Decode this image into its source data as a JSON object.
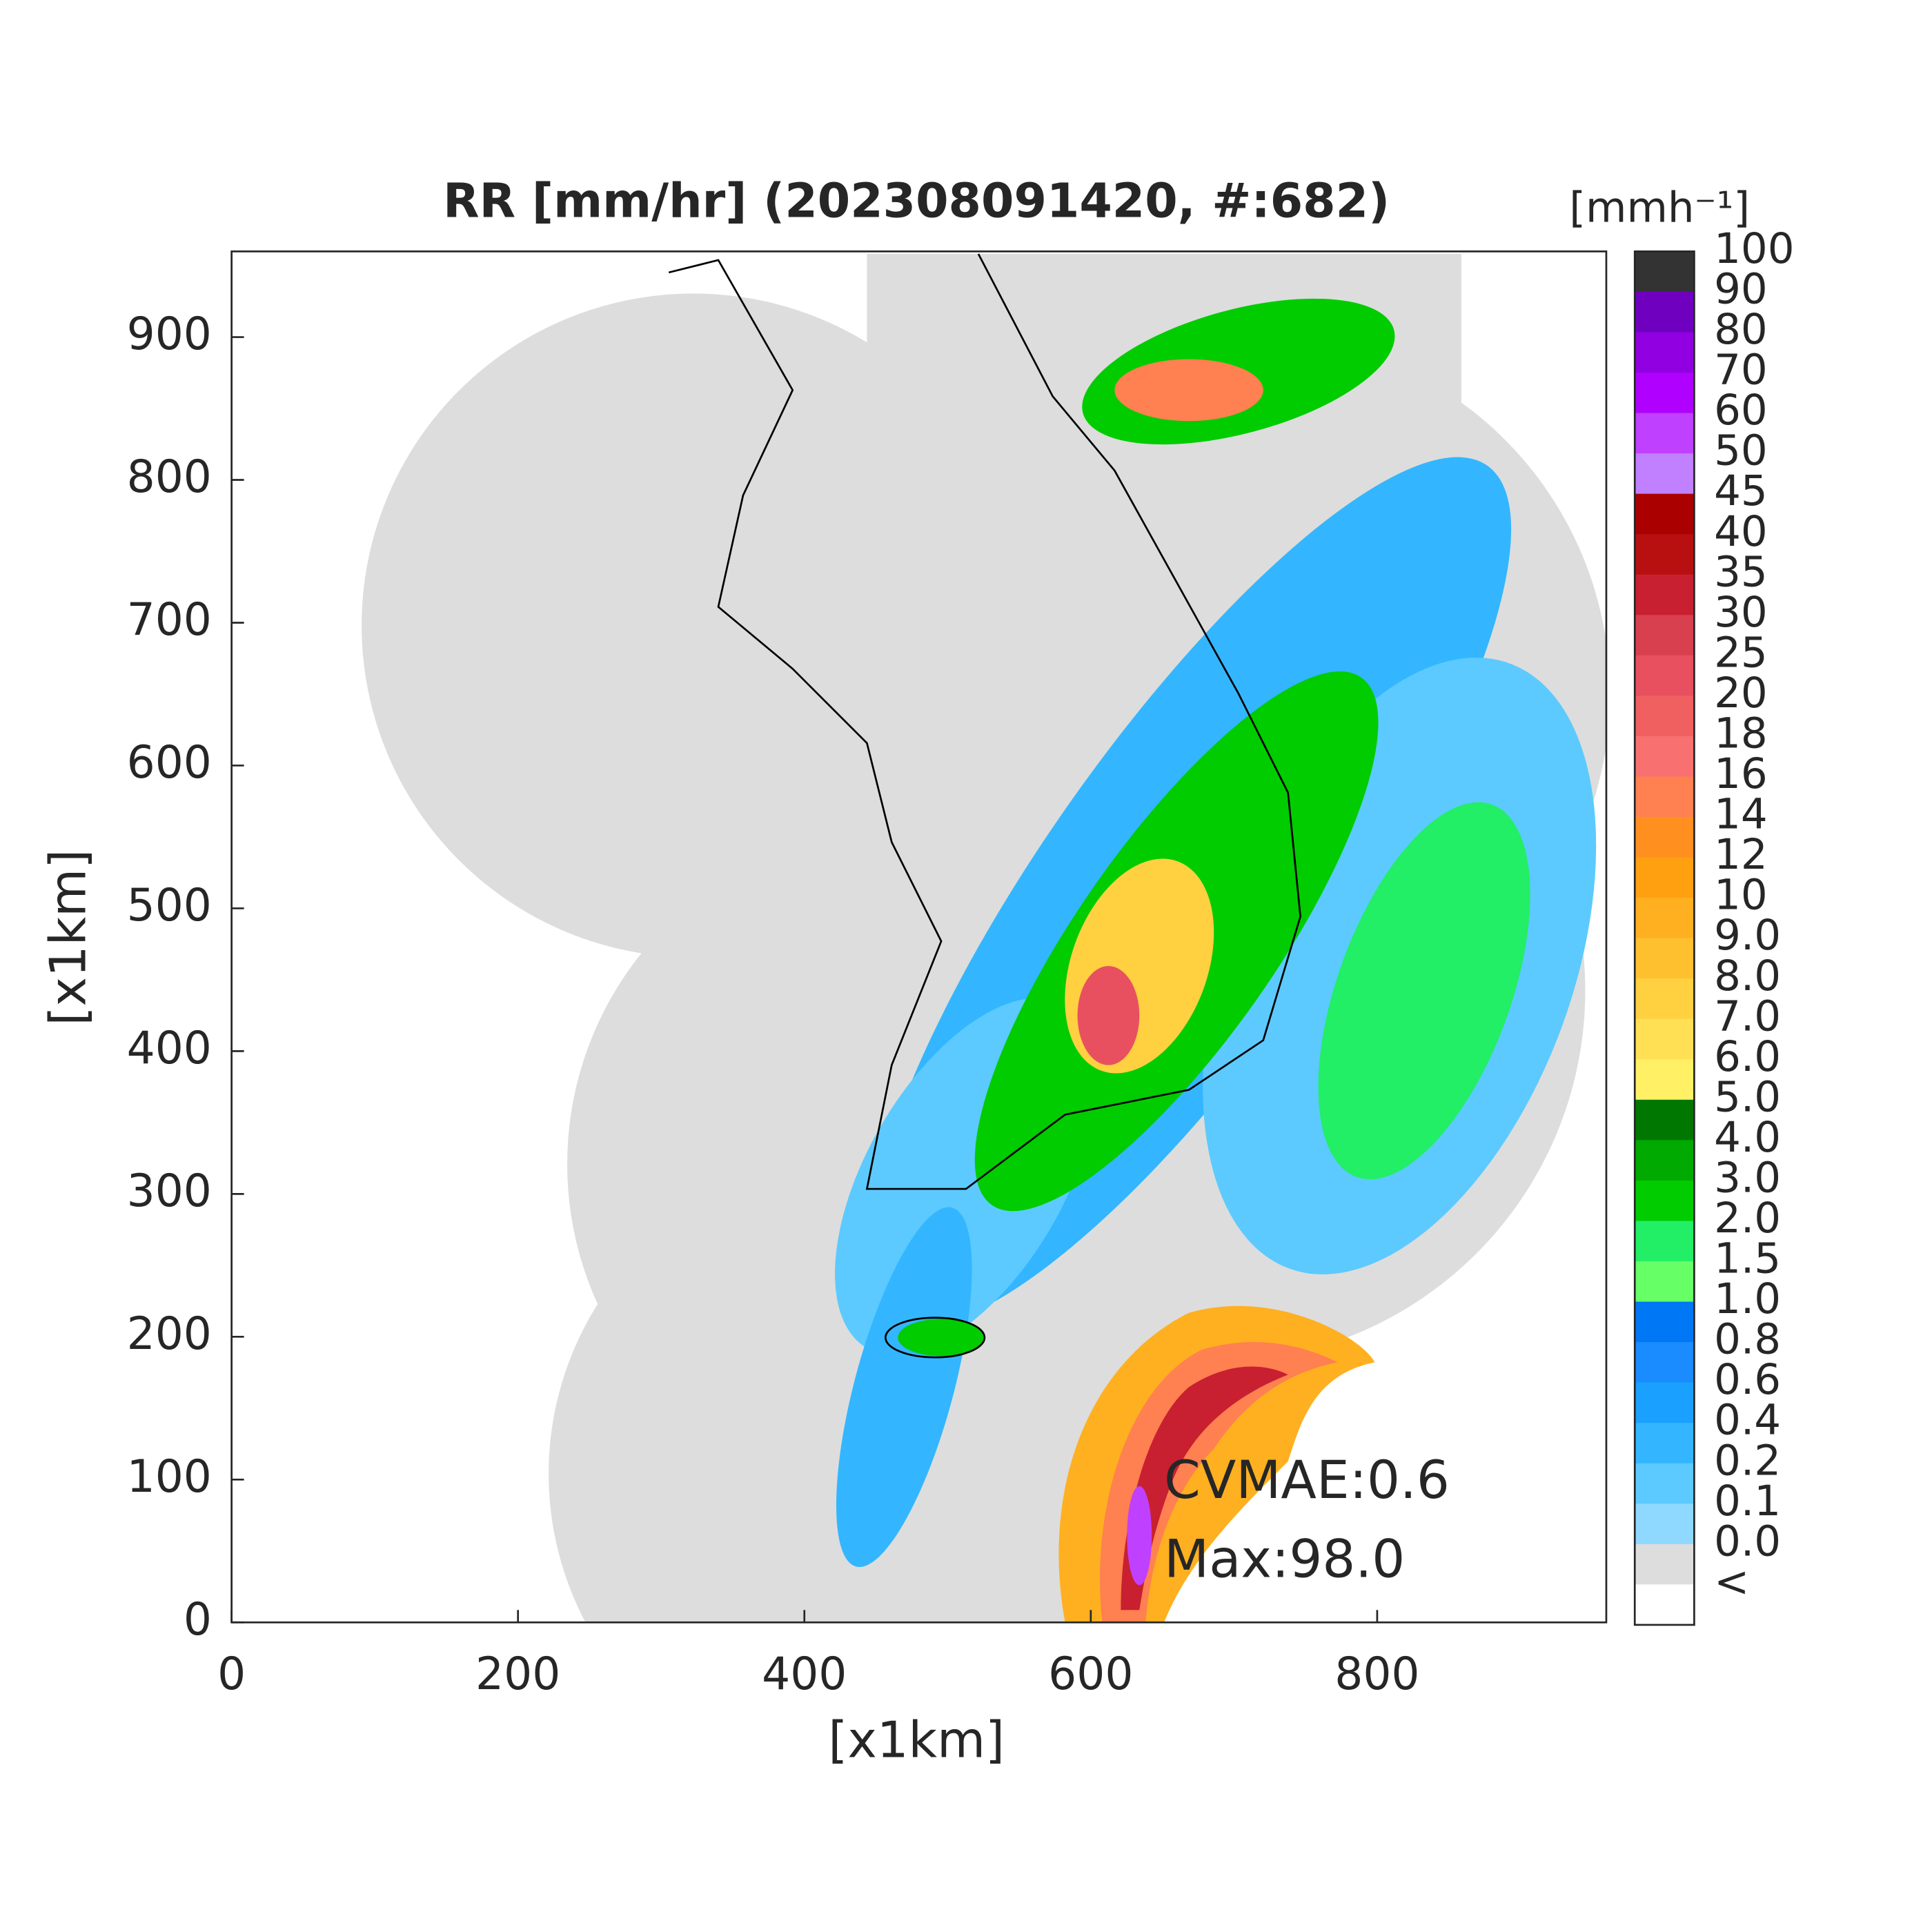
{
  "chart_data": {
    "type": "radar-map",
    "title": "RR [mm/hr] (202308091420, #:682)",
    "x_label": "[x1km]",
    "y_label": "[x1km]",
    "xlim": [
      0,
      960
    ],
    "ylim": [
      0,
      960
    ],
    "xticks": [
      0,
      200,
      400,
      600,
      800
    ],
    "yticks": [
      0,
      100,
      200,
      300,
      400,
      500,
      600,
      700,
      800,
      900
    ],
    "annotations": [
      "CVMAE:0.6",
      "Max:98.0"
    ],
    "colorbar": {
      "title": "[mmh⁻¹]",
      "labels": [
        "100",
        "90",
        "80",
        "70",
        "60",
        "50",
        "45",
        "40",
        "35",
        "30",
        "25",
        "20",
        "18",
        "16",
        "14",
        "12",
        "10",
        "9.0",
        "8.0",
        "7.0",
        "6.0",
        "5.0",
        "4.0",
        "3.0",
        "2.0",
        "1.5",
        "1.0",
        "0.8",
        "0.6",
        "0.4",
        "0.2",
        "0.1",
        "0.0",
        "<"
      ],
      "colors": [
        "#333333",
        "#7000c0",
        "#9000e0",
        "#b000ff",
        "#c040ff",
        "#c080ff",
        "#aa0000",
        "#b81010",
        "#c82030",
        "#d84050",
        "#e85060",
        "#f06060",
        "#f87070",
        "#ff8050",
        "#ff9020",
        "#ffa010",
        "#ffb020",
        "#ffc030",
        "#ffd040",
        "#ffe055",
        "#fff066",
        "#007700",
        "#00aa00",
        "#00cc00",
        "#22ee66",
        "#66ff66",
        "#0077f5",
        "#1a8cff",
        "#1aa0ff",
        "#33b6ff",
        "#5ccaff",
        "#8fd8ff",
        "#dddddd",
        "#ffffff"
      ]
    }
  }
}
